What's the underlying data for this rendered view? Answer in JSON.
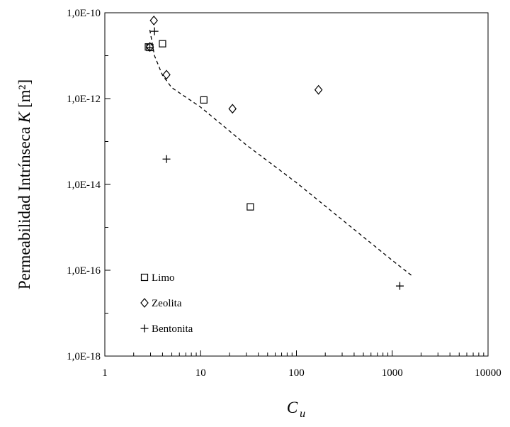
{
  "chart_data": {
    "type": "scatter",
    "title": "",
    "xlabel": {
      "main": "C",
      "sub": "u"
    },
    "ylabel": {
      "prefix": "Permeabilidad Intrínseca ",
      "symbol": "K",
      "suffix": " [m²]"
    },
    "x_scale": "log",
    "y_scale": "log",
    "xlim": [
      1,
      10000
    ],
    "ylim": [
      1e-18,
      1e-10
    ],
    "x_ticks": [
      {
        "value": 1,
        "label": "1"
      },
      {
        "value": 10,
        "label": "10"
      },
      {
        "value": 100,
        "label": "100"
      },
      {
        "value": 1000,
        "label": "1000"
      },
      {
        "value": 10000,
        "label": "10000"
      }
    ],
    "y_ticks": [
      {
        "value": 1e-18,
        "label": "1,0E-18"
      },
      {
        "value": 1e-16,
        "label": "1,0E-16"
      },
      {
        "value": 1e-14,
        "label": "1,0E-14"
      },
      {
        "value": 1e-12,
        "label": "1,0E-12"
      },
      {
        "value": 1e-10,
        "label": "1,0E-10"
      }
    ],
    "grid": false,
    "legend_position": "bottom-left",
    "series": [
      {
        "name": "Limo",
        "marker": "square",
        "points": [
          {
            "x": 2.85,
            "y": 1.6e-11
          },
          {
            "x": 2.95,
            "y": 1.55e-11
          },
          {
            "x": 4.0,
            "y": 1.9e-11
          },
          {
            "x": 10.8,
            "y": 9.3e-13
          },
          {
            "x": 33,
            "y": 3e-15
          }
        ]
      },
      {
        "name": "Zeolita",
        "marker": "diamond",
        "points": [
          {
            "x": 3.25,
            "y": 6.6e-11
          },
          {
            "x": 2.95,
            "y": 1.6e-11
          },
          {
            "x": 4.4,
            "y": 3.6e-12
          },
          {
            "x": 21.5,
            "y": 5.8e-13
          },
          {
            "x": 170,
            "y": 1.6e-12
          }
        ]
      },
      {
        "name": "Bentonita",
        "marker": "plus",
        "points": [
          {
            "x": 3.3,
            "y": 3.7e-11
          },
          {
            "x": 2.95,
            "y": 1.55e-11
          },
          {
            "x": 4.4,
            "y": 3.9e-14
          },
          {
            "x": 1200,
            "y": 4.3e-17
          }
        ]
      }
    ],
    "trend_line": {
      "style": "dashed",
      "points": [
        {
          "x": 2.95,
          "y": 4e-11
        },
        {
          "x": 3.3,
          "y": 1e-11
        },
        {
          "x": 4.0,
          "y": 3.5e-12
        },
        {
          "x": 5.0,
          "y": 1.8e-12
        },
        {
          "x": 10,
          "y": 6.3e-13
        },
        {
          "x": 30,
          "y": 8.3e-14
        },
        {
          "x": 100,
          "y": 1.1e-14
        },
        {
          "x": 300,
          "y": 1.5e-15
        },
        {
          "x": 1000,
          "y": 1.7e-16
        },
        {
          "x": 1600,
          "y": 7.5e-17
        }
      ]
    }
  }
}
